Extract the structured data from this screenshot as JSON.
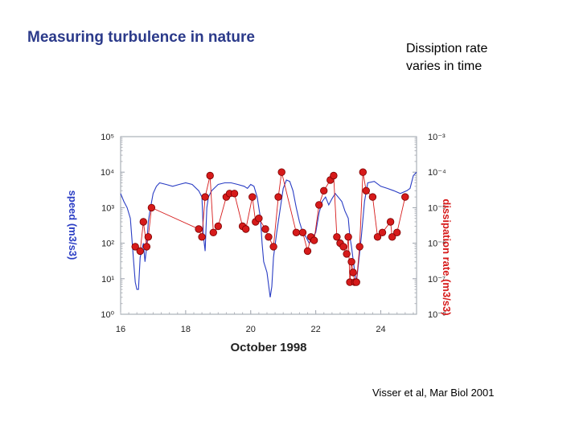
{
  "slide": {
    "title": "Measuring turbulence in nature",
    "subtitle_lines": [
      "Dissiption rate",
      "varies in time"
    ],
    "citation": "Visser et al, Mar Biol 2001"
  },
  "chart_data": {
    "type": "line",
    "xlabel": "October 1998",
    "xlim": [
      16,
      25.1
    ],
    "x_ticks": [
      16,
      18,
      20,
      22,
      24
    ],
    "ylabel_left": "speed (m3/s3)",
    "ylabel_right": "dissipation rate (m3/s3)",
    "left_axis": {
      "scale": "log",
      "ylim": [
        1,
        100000
      ],
      "tick_labels": [
        "10⁰",
        "10¹",
        "10²",
        "10³",
        "10⁴",
        "10⁵"
      ]
    },
    "right_axis": {
      "scale": "log",
      "ylim": [
        1e-08,
        0.001
      ],
      "tick_labels": [
        "10⁻⁸",
        "10⁻⁷",
        "10⁻⁶",
        "10⁻⁵",
        "10⁻⁴",
        "10⁻³"
      ]
    },
    "colors": {
      "continuous": "#2a3dc4",
      "points": "#d61a1a",
      "point_edge": "#7a0000"
    },
    "series": [
      {
        "axis": "left",
        "style": "line",
        "x": [
          16.0,
          16.1,
          16.2,
          16.3,
          16.4,
          16.45,
          16.5,
          16.55,
          16.6,
          16.7,
          16.75,
          16.8,
          16.85,
          16.9,
          17.0,
          17.1,
          17.2,
          17.4,
          17.6,
          17.8,
          18.0,
          18.2,
          18.4,
          18.5,
          18.55,
          18.6,
          18.65,
          18.7,
          18.8,
          19.0,
          19.2,
          19.4,
          19.6,
          19.8,
          19.9,
          20.0,
          20.1,
          20.2,
          20.3,
          20.35,
          20.4,
          20.5,
          20.6,
          20.65,
          20.7,
          20.8,
          21.0,
          21.1,
          21.2,
          21.3,
          21.4,
          21.5,
          21.6,
          21.7,
          21.8,
          22.0,
          22.1,
          22.2,
          22.3,
          22.4,
          22.5,
          22.6,
          22.8,
          22.9,
          23.0,
          23.05,
          23.1,
          23.15,
          23.2,
          23.25,
          23.3,
          23.4,
          23.5,
          23.6,
          23.8,
          24.0,
          24.2,
          24.4,
          24.6,
          24.8,
          24.9,
          25.0,
          25.1
        ],
        "y": [
          2500,
          1500,
          1000,
          500,
          30,
          8,
          5,
          5,
          40,
          100,
          30,
          80,
          400,
          800,
          2500,
          4000,
          5000,
          4500,
          4000,
          4500,
          5000,
          4500,
          3000,
          2000,
          150,
          60,
          1000,
          2000,
          3000,
          4500,
          5000,
          5000,
          4500,
          4000,
          3500,
          4500,
          4000,
          2000,
          500,
          100,
          30,
          15,
          3,
          6,
          40,
          200,
          3500,
          6000,
          5500,
          3000,
          1000,
          400,
          200,
          150,
          100,
          200,
          700,
          1500,
          2000,
          1200,
          1800,
          2500,
          1500,
          800,
          500,
          150,
          80,
          35,
          15,
          8,
          20,
          150,
          1500,
          5000,
          5500,
          4000,
          3500,
          3000,
          2500,
          3000,
          3500,
          8000,
          10000
        ]
      },
      {
        "axis": "left",
        "style": "points",
        "x": [
          16.45,
          16.6,
          16.7,
          16.8,
          16.85,
          16.95,
          18.4,
          18.5,
          18.6,
          18.75,
          18.85,
          19.0,
          19.25,
          19.35,
          19.5,
          19.75,
          19.85,
          20.05,
          20.15,
          20.25,
          20.45,
          20.55,
          20.7,
          20.85,
          20.95,
          21.4,
          21.6,
          21.75,
          21.85,
          21.95,
          22.1,
          22.25,
          22.45,
          22.55,
          22.65,
          22.75,
          22.85,
          22.95,
          23.0,
          23.05,
          23.1,
          23.15,
          23.2,
          23.25,
          23.35,
          23.45,
          23.55,
          23.75,
          23.9,
          24.05,
          24.3,
          24.35,
          24.5,
          24.75
        ],
        "y": [
          80,
          60,
          400,
          80,
          150,
          1000,
          250,
          150,
          2000,
          8000,
          200,
          300,
          2000,
          2500,
          2500,
          300,
          250,
          2000,
          400,
          500,
          250,
          150,
          80,
          2000,
          10000,
          200,
          200,
          60,
          150,
          120,
          1200,
          3000,
          6000,
          8000,
          150,
          100,
          80,
          50,
          150,
          8,
          30,
          15,
          8,
          8,
          80,
          10000,
          3000,
          2000,
          150,
          200,
          400,
          150,
          200,
          2000
        ]
      }
    ]
  }
}
